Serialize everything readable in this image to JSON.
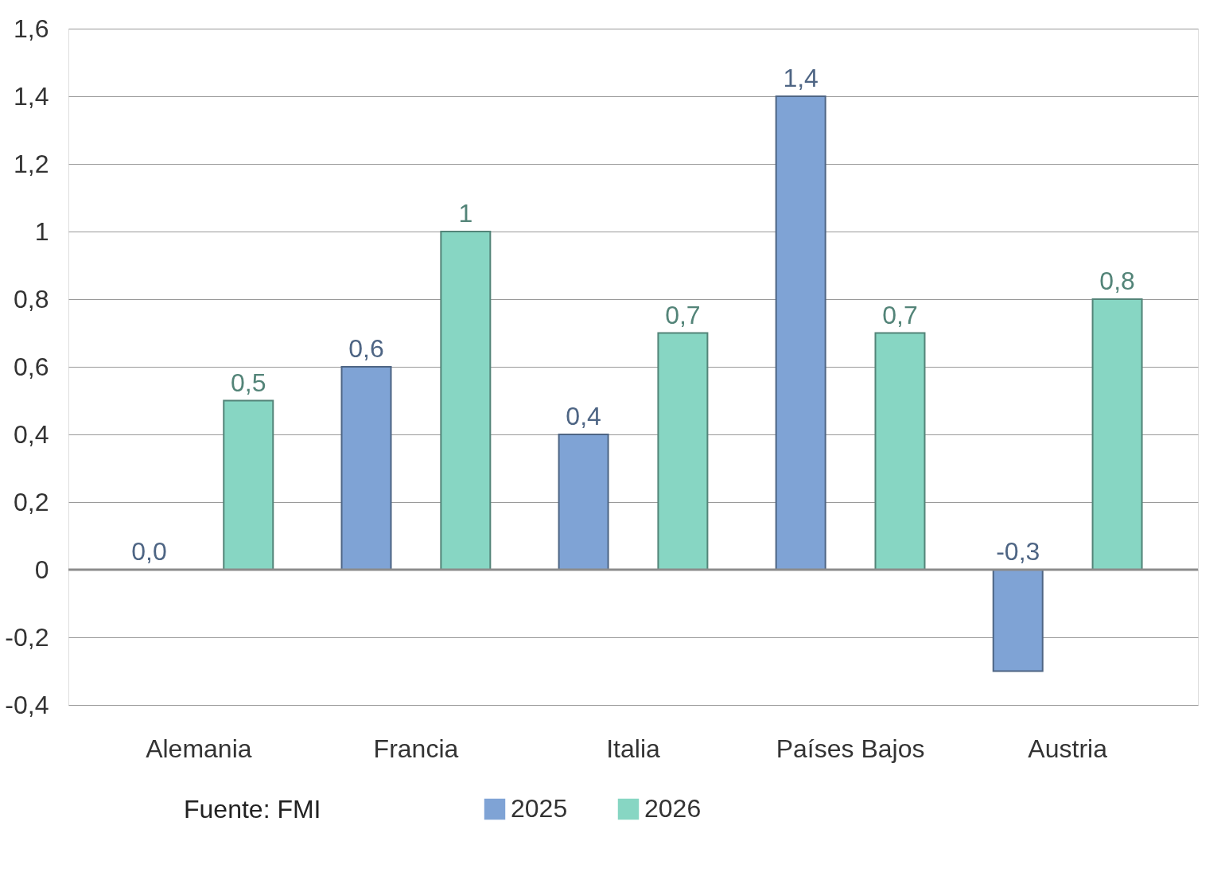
{
  "chart_data": {
    "type": "bar",
    "categories": [
      "Alemania",
      "Francia",
      "Italia",
      "Países Bajos",
      "Austria"
    ],
    "series": [
      {
        "name": "2025",
        "color": "#7fa3d5",
        "values": [
          0.0,
          0.6,
          0.4,
          1.4,
          -0.3
        ],
        "value_labels": [
          "0,0",
          "0,6",
          "0,4",
          "1,4",
          "-0,3"
        ]
      },
      {
        "name": "2026",
        "color": "#87d6c3",
        "values": [
          0.5,
          1,
          0.7,
          0.7,
          0.8
        ],
        "value_labels": [
          "0,5",
          "1",
          "0,7",
          "0,7",
          "0,8"
        ]
      }
    ],
    "ylim": [
      -0.4,
      1.6
    ],
    "yticks": [
      {
        "value": -0.4,
        "label": "-0,4"
      },
      {
        "value": -0.2,
        "label": "-0,2"
      },
      0,
      {
        "value": 0.2,
        "label": "0,2"
      },
      {
        "value": 0.4,
        "label": "0,4"
      },
      {
        "value": 0.6,
        "label": "0,6"
      },
      {
        "value": 0.8,
        "label": "0,8"
      },
      1,
      {
        "value": 1.2,
        "label": "1,2"
      },
      {
        "value": 1.4,
        "label": "1,4"
      },
      {
        "value": 1.6,
        "label": "1,6"
      }
    ],
    "ref_lines": [
      {
        "axis": "y",
        "value": 0,
        "color": "#8c8c8c"
      }
    ],
    "grid": "y",
    "legend": "bottom",
    "annotations": [
      "Fuente: FMI"
    ]
  }
}
